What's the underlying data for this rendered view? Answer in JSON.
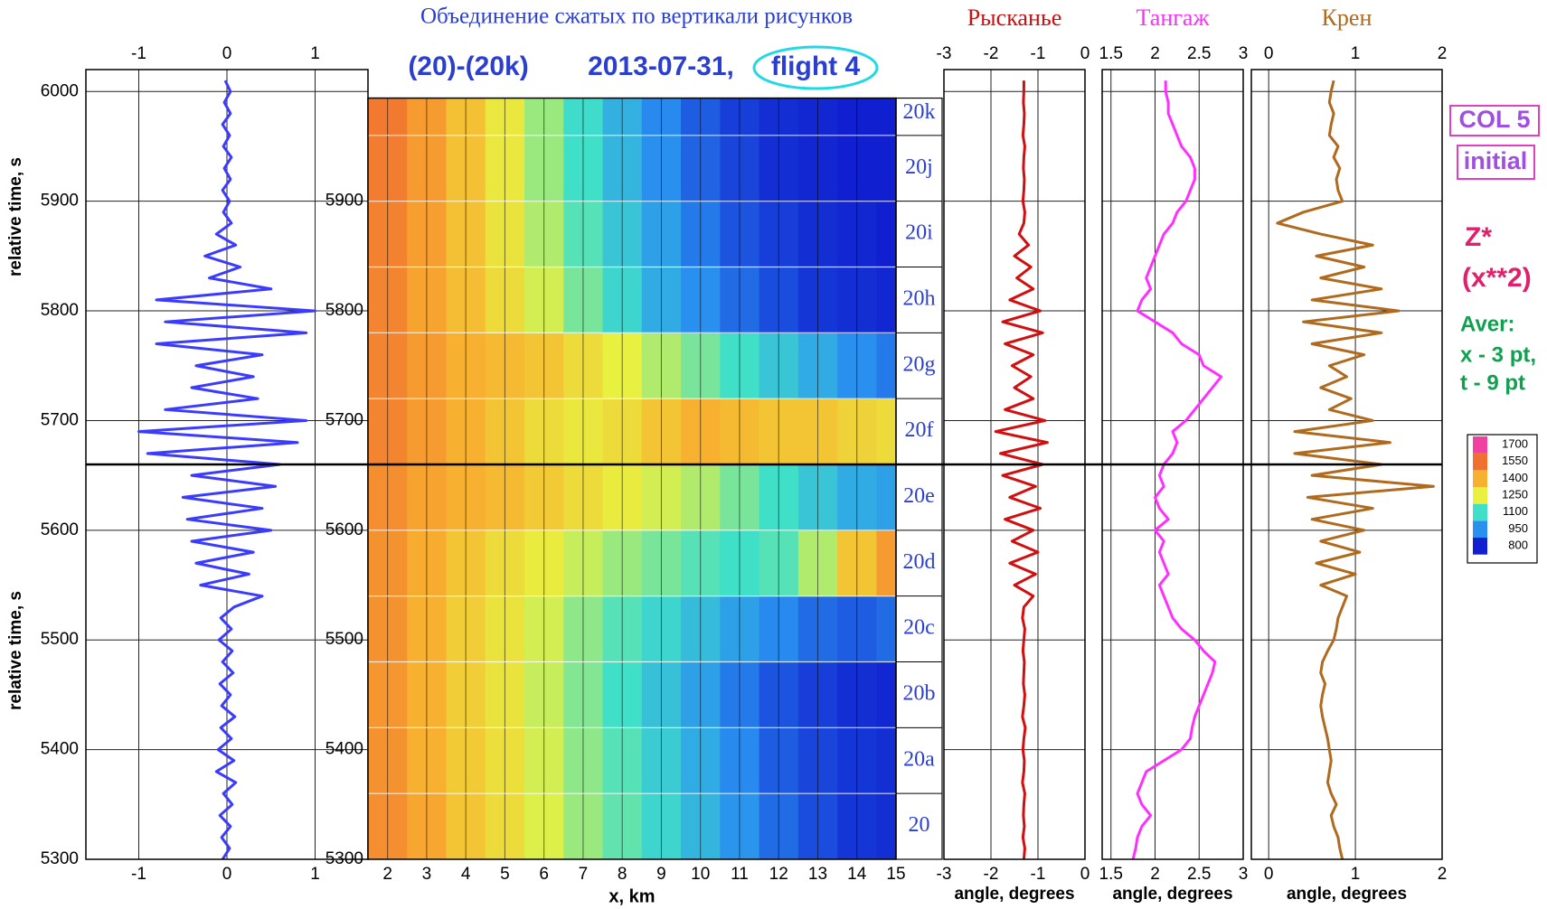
{
  "chart_data": [
    {
      "type": "line",
      "ylabel": "relative time, s",
      "xlim": [
        -1.6,
        1.6
      ],
      "xticks": [
        -1,
        0,
        1
      ],
      "ylim": [
        5300,
        6020
      ],
      "yticks": [
        5300,
        5400,
        5500,
        5600,
        5700,
        5800,
        5900,
        6000
      ],
      "grid": true,
      "y": [
        5300,
        5310,
        5320,
        5330,
        5340,
        5350,
        5360,
        5370,
        5380,
        5390,
        5400,
        5410,
        5420,
        5430,
        5440,
        5450,
        5460,
        5470,
        5480,
        5490,
        5500,
        5510,
        5520,
        5530,
        5540,
        5550,
        5560,
        5570,
        5580,
        5590,
        5600,
        5610,
        5620,
        5630,
        5640,
        5650,
        5660,
        5670,
        5680,
        5690,
        5700,
        5710,
        5720,
        5730,
        5740,
        5750,
        5760,
        5770,
        5780,
        5790,
        5800,
        5810,
        5820,
        5830,
        5840,
        5850,
        5860,
        5870,
        5880,
        5890,
        5900,
        5910,
        5920,
        5930,
        5940,
        5950,
        5960,
        5970,
        5980,
        5990,
        6000,
        6010
      ],
      "series": [
        {
          "color": "#3b3bff",
          "values": [
            -0.05,
            0.03,
            -0.06,
            0.04,
            -0.08,
            0.06,
            -0.04,
            0.1,
            -0.12,
            0.08,
            -0.1,
            0.05,
            -0.07,
            0.09,
            -0.06,
            0.04,
            -0.08,
            0.07,
            -0.05,
            0.06,
            -0.09,
            0.05,
            -0.07,
            0.08,
            0.4,
            -0.3,
            0.25,
            -0.35,
            0.3,
            -0.4,
            0.5,
            -0.45,
            0.4,
            -0.5,
            0.55,
            -0.4,
            0.6,
            -0.9,
            0.8,
            -1.0,
            0.9,
            -0.7,
            0.35,
            -0.4,
            0.3,
            -0.35,
            0.4,
            -0.8,
            0.9,
            -0.7,
            1.0,
            -0.8,
            0.5,
            -0.2,
            0.15,
            -0.25,
            0.1,
            -0.12,
            0.05,
            -0.04,
            0.03,
            -0.05,
            0.04,
            -0.03,
            0.05,
            -0.04,
            0.03,
            -0.05,
            0.04,
            -0.03,
            0.04,
            -0.02
          ]
        }
      ]
    },
    {
      "type": "heatmap",
      "title": "Объединение сжатых по вертикали рисунков",
      "subtitle": [
        "(20)-(20k)",
        "2013-07-31,",
        "flight 4"
      ],
      "xlabel": "x, km",
      "xlim": [
        1.5,
        15
      ],
      "xticks": [
        2,
        3,
        4,
        5,
        6,
        7,
        8,
        9,
        10,
        11,
        12,
        13,
        14,
        15
      ],
      "ylim": [
        5300,
        6020
      ],
      "yticks": [
        5300,
        5400,
        5500,
        5600,
        5700,
        5800,
        5900
      ],
      "x_edges": [
        1.5,
        2.5,
        3.5,
        4.5,
        5.5,
        6.5,
        7.5,
        8.5,
        9.5,
        10.5,
        11.5,
        12.5,
        13.5,
        14.5,
        15
      ],
      "y_edges": [
        5300,
        5360,
        5420,
        5480,
        5540,
        5600,
        5660,
        5720,
        5780,
        5840,
        5900,
        5960,
        5994
      ],
      "z": [
        [
          1480,
          1420,
          1350,
          1300,
          1240,
          1180,
          1130,
          1080,
          1020,
          960,
          900,
          860,
          830,
          820
        ],
        [
          1470,
          1400,
          1340,
          1290,
          1230,
          1170,
          1120,
          1060,
          1000,
          940,
          880,
          850,
          830,
          820
        ],
        [
          1460,
          1400,
          1330,
          1280,
          1220,
          1160,
          1100,
          1040,
          980,
          920,
          870,
          840,
          820,
          810
        ],
        [
          1470,
          1400,
          1330,
          1280,
          1230,
          1170,
          1120,
          1080,
          1030,
          980,
          940,
          900,
          880,
          900
        ],
        [
          1470,
          1410,
          1350,
          1300,
          1260,
          1220,
          1180,
          1150,
          1120,
          1100,
          1120,
          1200,
          1350,
          1450
        ],
        [
          1480,
          1430,
          1400,
          1380,
          1340,
          1300,
          1260,
          1230,
          1200,
          1150,
          1100,
          1050,
          1000,
          980
        ],
        [
          1500,
          1450,
          1400,
          1350,
          1300,
          1270,
          1300,
          1350,
          1400,
          1380,
          1350,
          1350,
          1320,
          1300
        ],
        [
          1500,
          1450,
          1400,
          1380,
          1350,
          1300,
          1250,
          1200,
          1150,
          1100,
          1050,
          1000,
          950,
          920
        ],
        [
          1500,
          1430,
          1370,
          1300,
          1230,
          1150,
          1080,
          1000,
          950,
          900,
          860,
          830,
          820,
          810
        ],
        [
          1510,
          1440,
          1360,
          1280,
          1200,
          1120,
          1050,
          980,
          920,
          870,
          840,
          820,
          810,
          800
        ],
        [
          1520,
          1450,
          1360,
          1270,
          1180,
          1100,
          1020,
          950,
          890,
          850,
          820,
          810,
          800,
          800
        ],
        [
          1530,
          1450,
          1360,
          1270,
          1180,
          1090,
          1010,
          940,
          880,
          840,
          820,
          810,
          800,
          800
        ]
      ],
      "segments": {
        "labels": [
          "20",
          "20a",
          "20b",
          "20c",
          "20d",
          "20e",
          "20f",
          "20g",
          "20h",
          "20i",
          "20j",
          "20k"
        ],
        "edges": [
          5300,
          5360,
          5420,
          5480,
          5540,
          5600,
          5660,
          5720,
          5780,
          5840,
          5900,
          5960,
          6020
        ]
      },
      "colorbar": {
        "ticks": [
          800,
          950,
          1100,
          1250,
          1400,
          1550,
          1700
        ],
        "colors": [
          "#1020d0",
          "#2a90f0",
          "#40e0c8",
          "#e8f040",
          "#f8b030",
          "#f07030",
          "#f040a0"
        ]
      }
    },
    {
      "type": "line",
      "title": "Рысканье",
      "title_color": "#cc1010",
      "xlabel": "angle, degrees",
      "xlim": [
        -3,
        0
      ],
      "xticks": [
        -3,
        -2,
        -1,
        0
      ],
      "ylim": [
        5300,
        6020
      ],
      "yticks": [
        5300,
        5400,
        5500,
        5600,
        5700,
        5800,
        5900,
        6000
      ],
      "grid": true,
      "y": [
        5300,
        5310,
        5320,
        5330,
        5340,
        5350,
        5360,
        5370,
        5380,
        5390,
        5400,
        5410,
        5420,
        5430,
        5440,
        5450,
        5460,
        5470,
        5480,
        5490,
        5500,
        5510,
        5520,
        5530,
        5540,
        5550,
        5560,
        5570,
        5580,
        5590,
        5600,
        5610,
        5620,
        5630,
        5640,
        5650,
        5660,
        5670,
        5680,
        5690,
        5700,
        5710,
        5720,
        5730,
        5740,
        5750,
        5760,
        5770,
        5780,
        5790,
        5800,
        5810,
        5820,
        5830,
        5840,
        5850,
        5860,
        5870,
        5880,
        5890,
        5900,
        5910,
        5920,
        5930,
        5940,
        5950,
        5960,
        5970,
        5980,
        5990,
        6000,
        6010
      ],
      "series": [
        {
          "color": "#d01010",
          "values": [
            -1.3,
            -1.28,
            -1.32,
            -1.29,
            -1.31,
            -1.3,
            -1.28,
            -1.33,
            -1.3,
            -1.29,
            -1.32,
            -1.3,
            -1.27,
            -1.33,
            -1.3,
            -1.28,
            -1.31,
            -1.3,
            -1.29,
            -1.32,
            -1.3,
            -1.28,
            -1.33,
            -1.3,
            -1.1,
            -1.5,
            -1.05,
            -1.6,
            -1.0,
            -1.55,
            -1.1,
            -1.7,
            -0.95,
            -1.6,
            -1.05,
            -1.75,
            -0.9,
            -1.8,
            -0.8,
            -1.9,
            -0.85,
            -1.7,
            -1.1,
            -1.5,
            -1.15,
            -1.55,
            -1.1,
            -1.7,
            -0.9,
            -1.75,
            -0.95,
            -1.6,
            -1.1,
            -1.45,
            -1.15,
            -1.5,
            -1.2,
            -1.4,
            -1.3,
            -1.28,
            -1.32,
            -1.3,
            -1.29,
            -1.31,
            -1.3,
            -1.28,
            -1.32,
            -1.3,
            -1.29,
            -1.31,
            -1.3,
            -1.3
          ]
        }
      ]
    },
    {
      "type": "line",
      "title": "Тангаж",
      "title_color": "#ff30ff",
      "xlabel": "angle, degrees",
      "xlim": [
        1.4,
        3
      ],
      "xticks": [
        1.5,
        2,
        2.5,
        3
      ],
      "ylim": [
        5300,
        6020
      ],
      "yticks": [
        5300,
        5400,
        5500,
        5600,
        5700,
        5800,
        5900,
        6000
      ],
      "grid": true,
      "y": [
        5300,
        5310,
        5320,
        5330,
        5340,
        5350,
        5360,
        5370,
        5380,
        5390,
        5400,
        5410,
        5420,
        5430,
        5440,
        5450,
        5460,
        5470,
        5480,
        5490,
        5500,
        5510,
        5520,
        5530,
        5540,
        5550,
        5560,
        5570,
        5580,
        5590,
        5600,
        5610,
        5620,
        5630,
        5640,
        5650,
        5660,
        5670,
        5680,
        5690,
        5700,
        5710,
        5720,
        5730,
        5740,
        5750,
        5760,
        5770,
        5780,
        5790,
        5800,
        5810,
        5820,
        5830,
        5840,
        5850,
        5860,
        5870,
        5880,
        5890,
        5900,
        5910,
        5920,
        5930,
        5940,
        5950,
        5960,
        5970,
        5980,
        5990,
        6000,
        6010
      ],
      "series": [
        {
          "color": "#ff30ff",
          "values": [
            1.75,
            1.78,
            1.8,
            1.85,
            1.95,
            1.85,
            1.8,
            1.85,
            1.9,
            2.1,
            2.3,
            2.4,
            2.42,
            2.45,
            2.5,
            2.55,
            2.6,
            2.65,
            2.68,
            2.55,
            2.45,
            2.3,
            2.2,
            2.15,
            2.1,
            2.05,
            2.15,
            2.1,
            2.05,
            2.1,
            2.0,
            2.15,
            2.05,
            2.0,
            2.1,
            2.05,
            2.1,
            2.2,
            2.25,
            2.2,
            2.35,
            2.45,
            2.55,
            2.65,
            2.75,
            2.55,
            2.5,
            2.3,
            2.2,
            2.0,
            1.8,
            1.85,
            1.95,
            1.9,
            1.95,
            2.0,
            2.05,
            2.1,
            2.2,
            2.25,
            2.35,
            2.4,
            2.45,
            2.45,
            2.4,
            2.3,
            2.25,
            2.2,
            2.15,
            2.15,
            2.12,
            2.12
          ]
        }
      ]
    },
    {
      "type": "line",
      "title": "Крен",
      "title_color": "#b06a1e",
      "xlabel": "angle, degrees",
      "xlim": [
        -0.2,
        2
      ],
      "xticks": [
        0,
        1,
        2
      ],
      "ylim": [
        5300,
        6020
      ],
      "yticks": [
        5300,
        5400,
        5500,
        5600,
        5700,
        5800,
        5900,
        6000
      ],
      "grid": true,
      "y": [
        5300,
        5310,
        5320,
        5330,
        5340,
        5350,
        5360,
        5370,
        5380,
        5390,
        5400,
        5410,
        5420,
        5430,
        5440,
        5450,
        5460,
        5470,
        5480,
        5490,
        5500,
        5510,
        5520,
        5530,
        5540,
        5550,
        5560,
        5570,
        5580,
        5590,
        5600,
        5610,
        5620,
        5630,
        5640,
        5650,
        5660,
        5670,
        5680,
        5690,
        5700,
        5710,
        5720,
        5730,
        5740,
        5750,
        5760,
        5770,
        5780,
        5790,
        5800,
        5810,
        5820,
        5830,
        5840,
        5850,
        5860,
        5870,
        5880,
        5890,
        5900,
        5910,
        5920,
        5930,
        5940,
        5950,
        5960,
        5970,
        5980,
        5990,
        6000,
        6010
      ],
      "series": [
        {
          "color": "#b06a1e",
          "values": [
            0.85,
            0.82,
            0.8,
            0.75,
            0.72,
            0.78,
            0.72,
            0.68,
            0.7,
            0.72,
            0.7,
            0.68,
            0.65,
            0.62,
            0.6,
            0.62,
            0.65,
            0.6,
            0.62,
            0.68,
            0.75,
            0.78,
            0.8,
            0.85,
            0.9,
            0.6,
            1.0,
            0.55,
            1.05,
            0.6,
            1.1,
            0.5,
            1.2,
            0.45,
            1.9,
            0.5,
            1.3,
            0.3,
            1.4,
            0.3,
            1.2,
            0.7,
            0.95,
            0.6,
            0.9,
            0.7,
            1.1,
            0.5,
            1.3,
            0.4,
            1.5,
            0.5,
            1.3,
            0.6,
            1.1,
            0.55,
            1.2,
            0.6,
            0.1,
            0.4,
            0.85,
            0.8,
            0.78,
            0.82,
            0.75,
            0.8,
            0.7,
            0.72,
            0.75,
            0.7,
            0.72,
            0.75
          ]
        }
      ]
    }
  ],
  "marker_time": 5660,
  "notes": {
    "box_labels": [
      "COL 5",
      "initial"
    ],
    "formula": [
      "Z*",
      "(x**2)"
    ],
    "averaging": [
      "Aver:",
      "x - 3 pt,",
      "t - 9 pt"
    ]
  }
}
